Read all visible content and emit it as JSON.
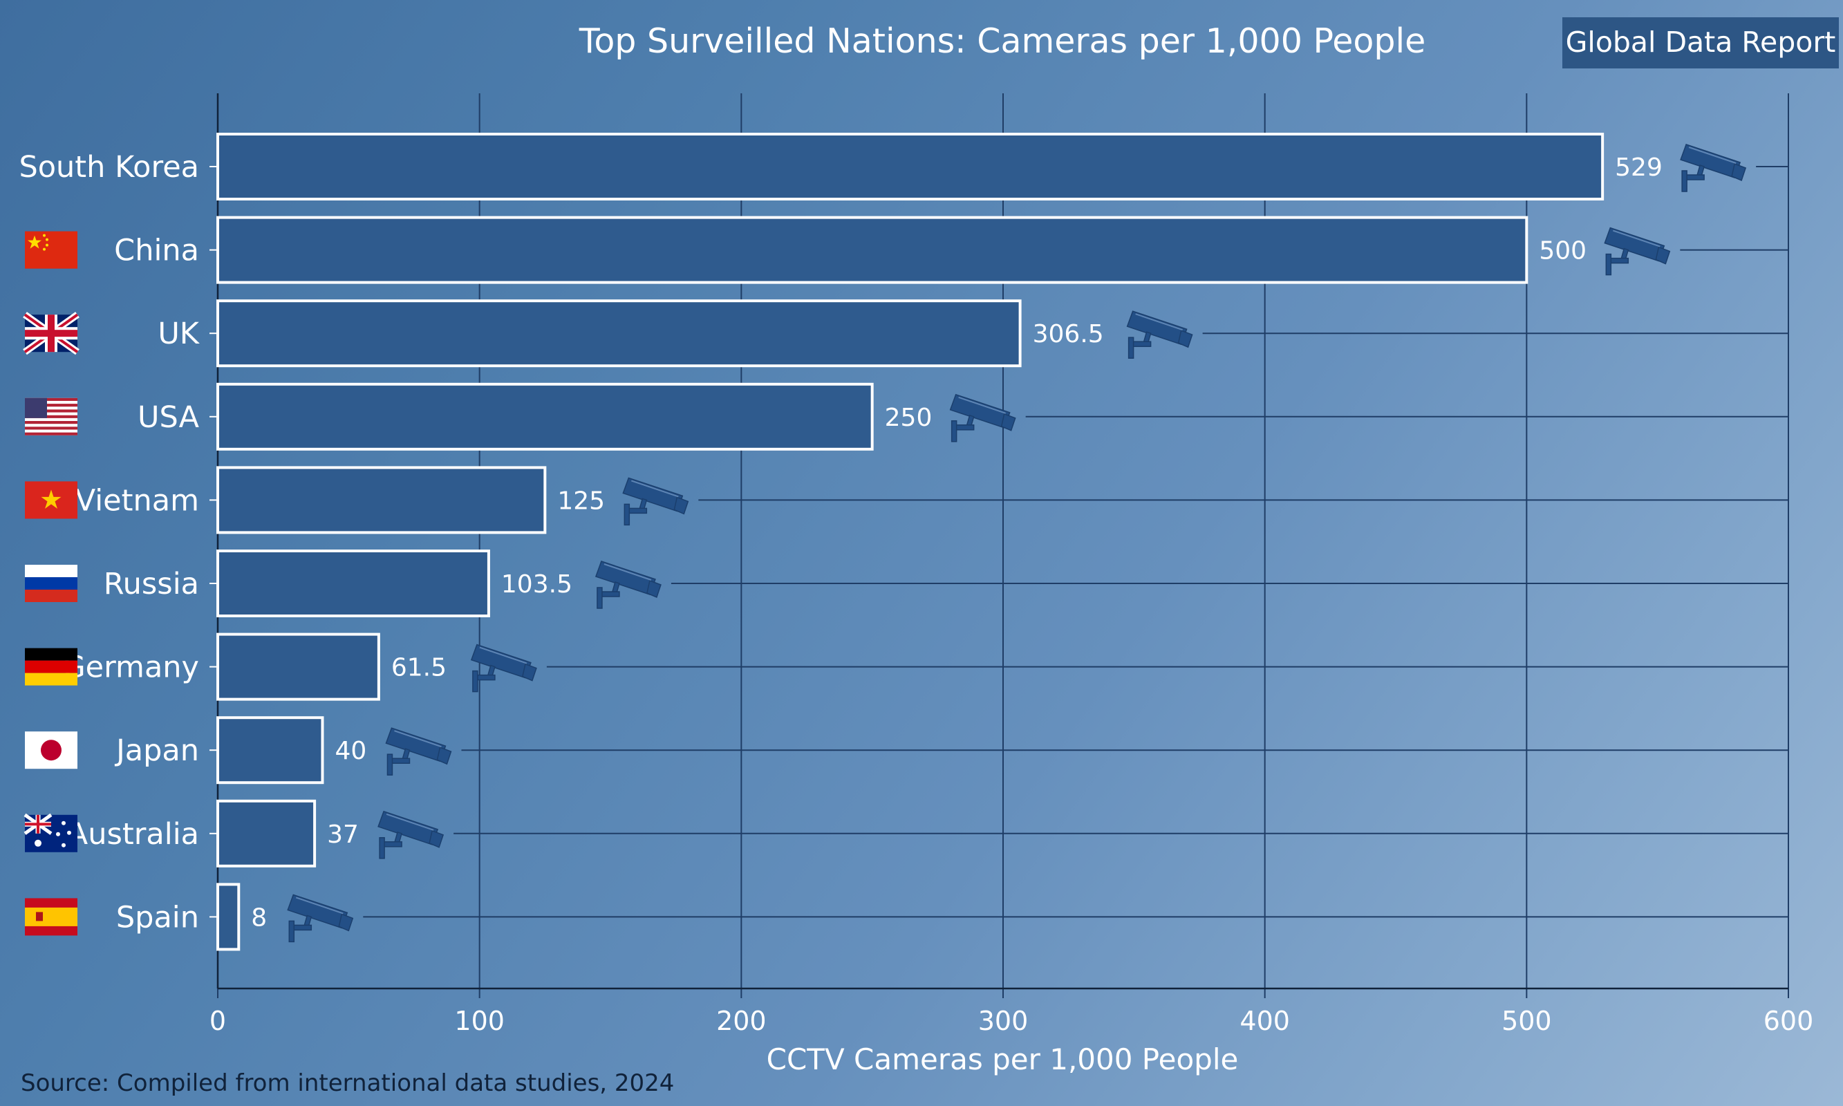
{
  "header": {
    "title": "Top Surveilled Nations: Cameras per 1,000 People",
    "badge": "Global Data Report"
  },
  "footer": {
    "source": "Source: Compiled from international data studies, 2024"
  },
  "colors": {
    "bar_fill": "#2f5b8e",
    "bar_stroke": "#ffffff",
    "grid": "#1f3d66",
    "camera_icon": "#234f86",
    "badge_bg": "#2d5685"
  },
  "chart_data": {
    "type": "bar",
    "orientation": "horizontal",
    "title": "Top Surveilled Nations: Cameras per 1,000 People",
    "xlabel": "CCTV Cameras per 1,000 People",
    "ylabel": "",
    "xlim": [
      0,
      600
    ],
    "xticks": [
      0,
      100,
      200,
      300,
      400,
      500,
      600
    ],
    "grid": true,
    "categories": [
      "South Korea",
      "China",
      "UK",
      "USA",
      "Vietnam",
      "Russia",
      "Germany",
      "Japan",
      "Australia",
      "Spain"
    ],
    "values": [
      529,
      500,
      306.5,
      250,
      125,
      103.5,
      61.5,
      40,
      37,
      8
    ],
    "value_labels": [
      "529",
      "500",
      "306.5",
      "250",
      "125",
      "103.5",
      "61.5",
      "40",
      "37",
      "8"
    ],
    "flags": [
      "",
      "china-flag-icon",
      "uk-flag-icon",
      "usa-flag-icon",
      "vietnam-flag-icon",
      "russia-flag-icon",
      "germany-flag-icon",
      "japan-flag-icon",
      "australia-flag-icon",
      "spain-flag-icon"
    ],
    "marker_icon": "cctv-camera-icon"
  }
}
